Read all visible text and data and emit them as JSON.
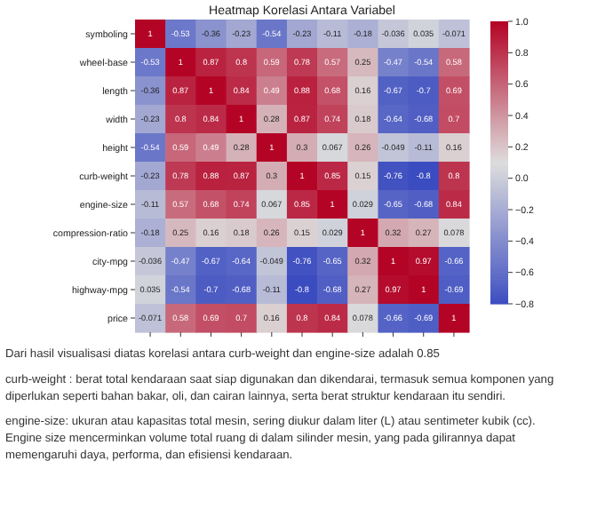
{
  "chart_data": {
    "type": "heatmap",
    "title": "Heatmap Korelasi Antara Variabel",
    "categories": [
      null,
      null,
      null,
      null,
      null,
      null,
      null,
      null,
      null,
      null,
      null
    ],
    "y_categories": [
      "symboling",
      "wheel-base",
      "length",
      "width",
      "height",
      "curb-weight",
      "engine-size",
      "compression-ratio",
      "city-mpg",
      "highway-mpg",
      "price"
    ],
    "cells": [
      [
        1,
        -0.53,
        -0.36,
        -0.23,
        -0.54,
        -0.23,
        -0.11,
        -0.18,
        -0.036,
        0.035,
        -0.071
      ],
      [
        -0.53,
        1,
        0.87,
        0.8,
        0.59,
        0.78,
        0.57,
        0.25,
        -0.47,
        -0.54,
        0.58
      ],
      [
        -0.36,
        0.87,
        1,
        0.84,
        0.49,
        0.88,
        0.68,
        0.16,
        -0.67,
        -0.7,
        0.69
      ],
      [
        -0.23,
        0.8,
        0.84,
        1,
        0.28,
        0.87,
        0.74,
        0.18,
        -0.64,
        -0.68,
        0.7
      ],
      [
        -0.54,
        0.59,
        0.49,
        0.28,
        1,
        0.3,
        0.067,
        0.26,
        -0.049,
        -0.11,
        0.16
      ],
      [
        -0.23,
        0.78,
        0.88,
        0.87,
        0.3,
        1,
        0.85,
        0.15,
        -0.76,
        -0.8,
        0.8
      ],
      [
        -0.11,
        0.57,
        0.68,
        0.74,
        0.067,
        0.85,
        1,
        0.029,
        -0.65,
        -0.68,
        0.84
      ],
      [
        -0.18,
        0.25,
        0.16,
        0.18,
        0.26,
        0.15,
        0.029,
        1,
        0.32,
        0.27,
        0.078
      ],
      [
        -0.036,
        -0.47,
        -0.67,
        -0.64,
        -0.049,
        -0.76,
        -0.65,
        0.32,
        1,
        0.97,
        -0.66
      ],
      [
        0.035,
        -0.54,
        -0.7,
        -0.68,
        -0.11,
        -0.8,
        -0.68,
        0.27,
        0.97,
        1,
        -0.69
      ],
      [
        -0.071,
        0.58,
        0.69,
        0.7,
        0.16,
        0.8,
        0.84,
        0.078,
        -0.66,
        -0.69,
        1
      ]
    ],
    "clim": [
      -0.8,
      1
    ],
    "cticks": [
      {
        "value": 1,
        "label": "1.0"
      },
      {
        "value": 0.8,
        "label": "0.8"
      },
      {
        "value": 0.6,
        "label": "0.6"
      },
      {
        "value": 0.4,
        "label": "0.4"
      },
      {
        "value": 0.2,
        "label": "0.2"
      },
      {
        "value": 0,
        "label": "0.0"
      },
      {
        "value": -0.2,
        "label": "−0.2"
      },
      {
        "value": -0.4,
        "label": "−0.4"
      },
      {
        "value": -0.6,
        "label": "−0.6"
      },
      {
        "value": -0.8,
        "label": "−0.8"
      }
    ],
    "data_labels": true,
    "tick_labels": "y",
    "annotations": [
      "Dari hasil visualisasi diatas korelasi antara curb-weight dan engine-size adalah 0.85",
      "curb-weight : berat total kendaraan saat siap digunakan dan dikendarai, termasuk semua komponen yang diperlukan seperti bahan bakar, oli, dan cairan lainnya, serta berat struktur kendaraan itu sendiri.",
      "engine-size: ukuran atau kapasitas total mesin, sering diukur dalam liter (L) atau sentimeter kubik (cc). Engine size mencerminkan volume total ruang di dalam silinder mesin, yang pada gilirannya dapat memengaruhi daya, performa, dan efisiensi kendaraan."
    ]
  }
}
